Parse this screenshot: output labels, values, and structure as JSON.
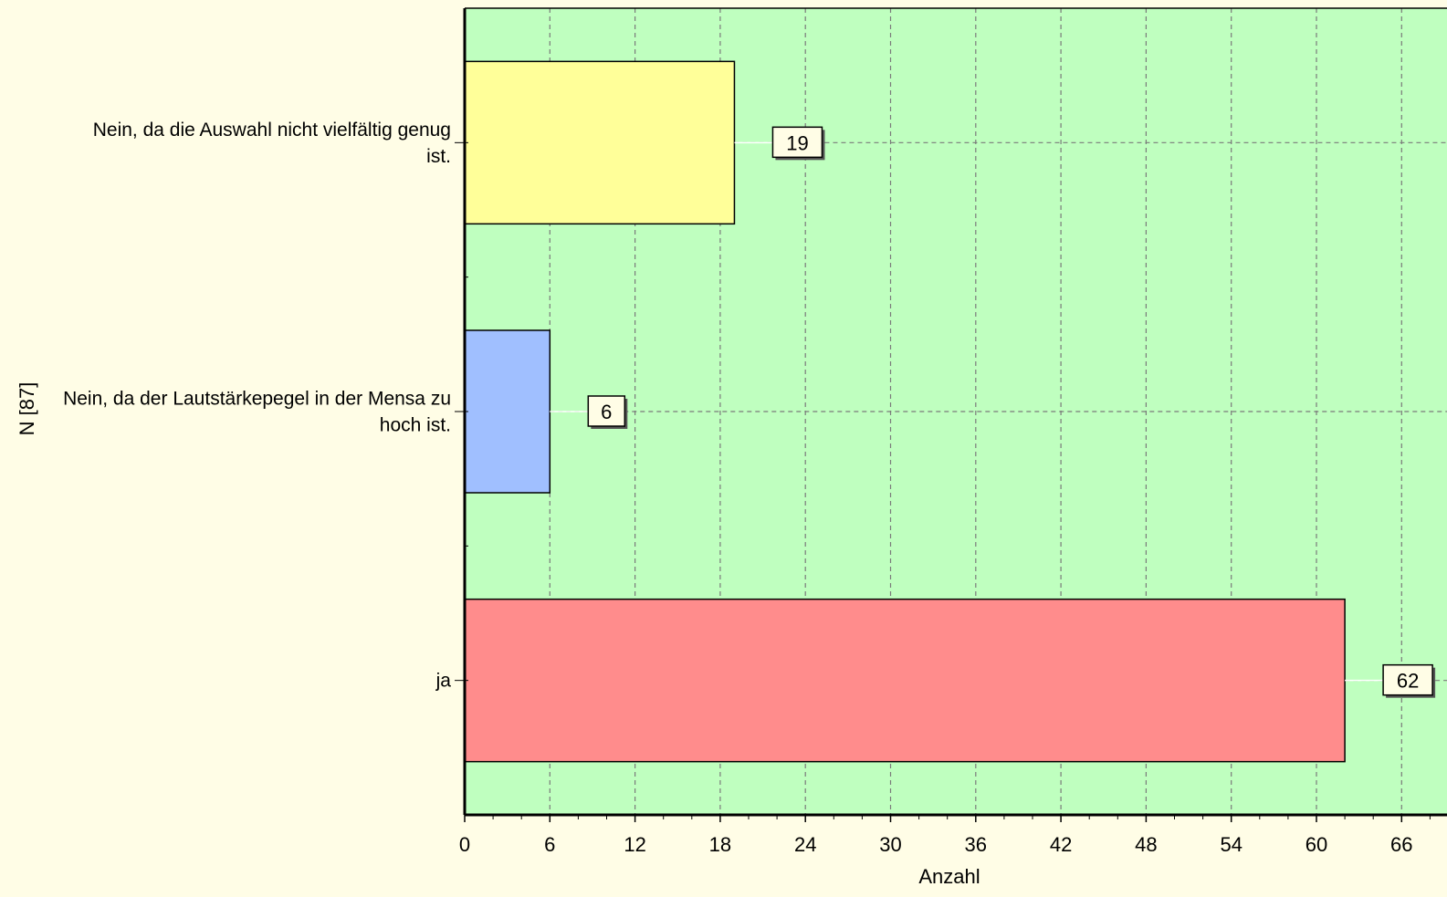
{
  "chart_data": {
    "type": "bar",
    "orientation": "horizontal",
    "categories": [
      "Nein, da die Auswahl nicht vielfältig genug ist.",
      "Nein, da der Lautstärkepegel in der Mensa zu hoch ist.",
      "ja"
    ],
    "category_label_lines": [
      [
        "Nein, da die Auswahl nicht vielfältig genug",
        "ist."
      ],
      [
        "Nein, da der Lautstärkepegel in der Mensa zu",
        "hoch ist."
      ],
      [
        "ja"
      ]
    ],
    "values": [
      19,
      6,
      62
    ],
    "data_labels": [
      "19",
      "6",
      "62"
    ],
    "bar_colors": [
      "#ffff99",
      "#a0bfff",
      "#ff8c8c"
    ],
    "xlabel": "Anzahl",
    "ylabel": "N [87]",
    "xlim": [
      0,
      68
    ],
    "x_ticks": [
      0,
      6,
      12,
      18,
      24,
      30,
      36,
      42,
      48,
      54,
      60,
      66
    ],
    "x_tick_labels": [
      "0",
      "6",
      "12",
      "18",
      "24",
      "30",
      "36",
      "42",
      "48",
      "54",
      "60",
      "66"
    ],
    "grid": true,
    "legend": "none",
    "colors": {
      "page_background": "#fffde6",
      "plot_background": "#bfffbf",
      "grid": "#7a7a7a",
      "axis": "#000000",
      "label_box": "#fffde6"
    }
  }
}
